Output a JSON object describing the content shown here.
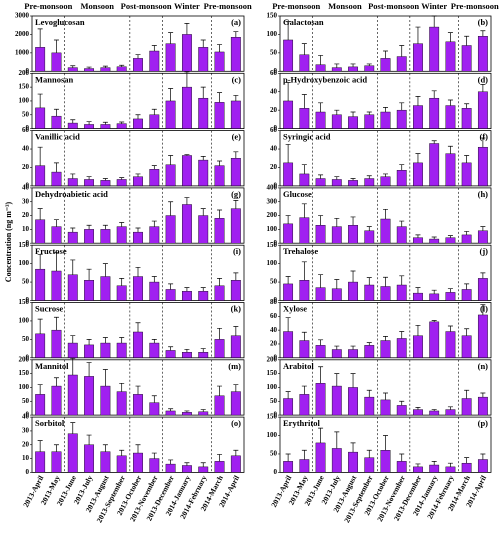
{
  "y_axis_label": "Concentration (ng m⁻³)",
  "seasons": [
    "Pre-monsoon",
    "Monsoon",
    "Post-monsoon",
    "Winter",
    "Pre-monsoon"
  ],
  "categories": [
    "2013-April",
    "2013-May",
    "2013-June",
    "2013-July",
    "2013-August",
    "2013-September",
    "2013-October",
    "2013-November",
    "2013-December",
    "2014-January",
    "2014-February",
    "2014-March",
    "2014-April"
  ],
  "chart_data": [
    {
      "type": "bar",
      "title": "Levoglucosan",
      "label": "(a)",
      "color": "#a020f0",
      "ylim": [
        0,
        3000
      ],
      "yticks": [
        0,
        1000,
        2000,
        3000
      ],
      "values": [
        1300,
        1000,
        200,
        150,
        200,
        250,
        700,
        1100,
        1500,
        2000,
        1300,
        1050,
        1850
      ],
      "errors": [
        1000,
        700,
        100,
        80,
        80,
        80,
        200,
        300,
        600,
        600,
        400,
        400,
        300
      ]
    },
    {
      "type": "bar",
      "title": "Galactosan",
      "label": "(b)",
      "color": "#a020f0",
      "ylim": [
        0,
        150
      ],
      "yticks": [
        0,
        50,
        100,
        150
      ],
      "values": [
        85,
        45,
        18,
        10,
        12,
        15,
        35,
        40,
        75,
        120,
        80,
        70,
        95
      ],
      "errors": [
        50,
        30,
        25,
        10,
        8,
        5,
        20,
        30,
        45,
        30,
        25,
        25,
        15
      ]
    },
    {
      "type": "bar",
      "title": "Mannosan",
      "label": "(c)",
      "color": "#a020f0",
      "ylim": [
        0,
        200
      ],
      "yticks": [
        0,
        50,
        100,
        150,
        200
      ],
      "values": [
        75,
        45,
        20,
        15,
        15,
        18,
        35,
        50,
        100,
        150,
        110,
        95,
        100
      ],
      "errors": [
        50,
        25,
        12,
        10,
        8,
        6,
        15,
        20,
        45,
        55,
        40,
        35,
        20
      ]
    },
    {
      "type": "bar",
      "title": "p-Hydroxybenzoic acid",
      "label": "(d)",
      "color": "#a020f0",
      "ylim": [
        0,
        60
      ],
      "yticks": [
        0,
        20,
        40,
        60
      ],
      "values": [
        30,
        22,
        18,
        15,
        13,
        15,
        18,
        20,
        25,
        33,
        25,
        22,
        40
      ],
      "errors": [
        20,
        15,
        10,
        5,
        5,
        3,
        5,
        8,
        10,
        8,
        6,
        5,
        8
      ]
    },
    {
      "type": "bar",
      "title": "Vanillic acid",
      "label": "(e)",
      "color": "#a020f0",
      "ylim": [
        0,
        60
      ],
      "yticks": [
        0,
        20,
        40,
        60
      ],
      "values": [
        22,
        15,
        8,
        7,
        6,
        7,
        10,
        18,
        23,
        33,
        28,
        22,
        30
      ],
      "errors": [
        20,
        10,
        5,
        3,
        2,
        2,
        3,
        4,
        10,
        1,
        4,
        5,
        7
      ]
    },
    {
      "type": "bar",
      "title": "Syringic acid",
      "label": "(f)",
      "color": "#a020f0",
      "ylim": [
        0,
        60
      ],
      "yticks": [
        0,
        20,
        40,
        60
      ],
      "values": [
        25,
        13,
        8,
        7,
        6,
        8,
        10,
        17,
        25,
        46,
        35,
        25,
        42
      ],
      "errors": [
        20,
        10,
        4,
        3,
        2,
        3,
        3,
        6,
        10,
        3,
        8,
        8,
        10
      ]
    },
    {
      "type": "bar",
      "title": "Dehydroabietic acid",
      "label": "(g)",
      "color": "#a020f0",
      "ylim": [
        0,
        40
      ],
      "yticks": [
        0,
        10,
        20,
        30,
        40
      ],
      "values": [
        17,
        12,
        8,
        10,
        10,
        12,
        8,
        12,
        20,
        28,
        20,
        18,
        25
      ],
      "errors": [
        8,
        5,
        3,
        3,
        3,
        3,
        3,
        4,
        10,
        5,
        5,
        6,
        6
      ]
    },
    {
      "type": "bar",
      "title": "Glucose",
      "label": "(h)",
      "color": "#a020f0",
      "ylim": [
        0,
        400
      ],
      "yticks": [
        0,
        100,
        200,
        300,
        400
      ],
      "values": [
        140,
        185,
        130,
        120,
        130,
        90,
        175,
        120,
        40,
        30,
        40,
        60,
        90
      ],
      "errors": [
        60,
        100,
        70,
        60,
        60,
        30,
        70,
        40,
        20,
        15,
        15,
        25,
        30
      ]
    },
    {
      "type": "bar",
      "title": "Fructose",
      "label": "(i)",
      "color": "#a020f0",
      "ylim": [
        0,
        150
      ],
      "yticks": [
        0,
        50,
        100,
        150
      ],
      "values": [
        85,
        80,
        70,
        55,
        65,
        40,
        65,
        50,
        30,
        25,
        25,
        40,
        55
      ],
      "errors": [
        40,
        50,
        40,
        30,
        35,
        20,
        25,
        15,
        15,
        10,
        10,
        20,
        20
      ]
    },
    {
      "type": "bar",
      "title": "Trehalose",
      "label": "(j)",
      "color": "#a020f0",
      "ylim": [
        0,
        150
      ],
      "yticks": [
        0,
        50,
        100,
        150
      ],
      "values": [
        45,
        55,
        35,
        32,
        50,
        42,
        38,
        42,
        20,
        18,
        22,
        30,
        60
      ],
      "errors": [
        20,
        50,
        35,
        25,
        30,
        20,
        25,
        25,
        15,
        10,
        10,
        15,
        15
      ]
    },
    {
      "type": "bar",
      "title": "Sucrose",
      "label": "(k)",
      "color": "#a020f0",
      "ylim": [
        0,
        150
      ],
      "yticks": [
        0,
        50,
        100,
        150
      ],
      "values": [
        65,
        75,
        40,
        35,
        40,
        40,
        70,
        40,
        20,
        15,
        15,
        50,
        60
      ],
      "errors": [
        40,
        35,
        20,
        15,
        15,
        15,
        25,
        10,
        10,
        8,
        10,
        30,
        25
      ]
    },
    {
      "type": "bar",
      "title": "Xylose",
      "label": "(l)",
      "color": "#a020f0",
      "ylim": [
        0,
        80
      ],
      "yticks": [
        0,
        20,
        40,
        60,
        80
      ],
      "values": [
        38,
        25,
        18,
        12,
        12,
        18,
        25,
        28,
        32,
        52,
        38,
        32,
        62
      ],
      "errors": [
        20,
        12,
        8,
        5,
        5,
        4,
        6,
        10,
        15,
        2,
        8,
        10,
        15
      ]
    },
    {
      "type": "bar",
      "title": "Mannitol",
      "label": "(m)",
      "color": "#a020f0",
      "ylim": [
        0,
        200
      ],
      "yticks": [
        0,
        50,
        100,
        150,
        200
      ],
      "values": [
        75,
        105,
        145,
        140,
        105,
        85,
        75,
        45,
        15,
        10,
        12,
        70,
        85
      ],
      "errors": [
        35,
        30,
        60,
        50,
        60,
        30,
        30,
        25,
        8,
        5,
        8,
        35,
        25
      ]
    },
    {
      "type": "bar",
      "title": "Arabitol",
      "label": "(n)",
      "color": "#a020f0",
      "ylim": [
        0,
        200
      ],
      "yticks": [
        0,
        50,
        100,
        150,
        200
      ],
      "values": [
        60,
        75,
        115,
        105,
        100,
        65,
        55,
        35,
        20,
        15,
        20,
        60,
        65
      ],
      "errors": [
        25,
        30,
        60,
        45,
        50,
        25,
        25,
        15,
        8,
        5,
        10,
        30,
        15
      ]
    },
    {
      "type": "bar",
      "title": "Sorbitol",
      "label": "(o)",
      "color": "#a020f0",
      "ylim": [
        0,
        40
      ],
      "yticks": [
        0,
        10,
        20,
        30,
        40
      ],
      "values": [
        15,
        15,
        28,
        20,
        15,
        12,
        14,
        10,
        6,
        5,
        4,
        8,
        12
      ],
      "errors": [
        8,
        5,
        8,
        7,
        5,
        4,
        6,
        4,
        3,
        2,
        3,
        5,
        4
      ]
    },
    {
      "type": "bar",
      "title": "Erythritol",
      "label": "(p)",
      "color": "#a020f0",
      "ylim": [
        0,
        150
      ],
      "yticks": [
        0,
        50,
        100,
        150
      ],
      "values": [
        30,
        35,
        80,
        65,
        55,
        40,
        60,
        30,
        15,
        20,
        15,
        25,
        35
      ],
      "errors": [
        20,
        25,
        40,
        45,
        25,
        20,
        40,
        20,
        8,
        10,
        10,
        15,
        15
      ]
    }
  ]
}
